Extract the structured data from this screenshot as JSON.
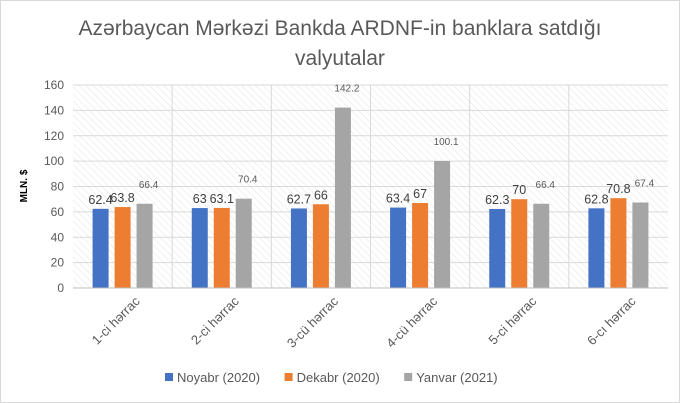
{
  "colors": {
    "series": [
      "#4472c4",
      "#ed7d31",
      "#a5a5a5"
    ],
    "grid": "#d9d9d9",
    "axis_text": "#595959"
  },
  "chart_data": {
    "type": "bar",
    "title": "Azərbaycan Mərkəzi Bankda ARDNF-in banklara satdığı valyutalar",
    "xlabel": "",
    "ylabel": "MLN. $",
    "ylim": [
      0,
      160
    ],
    "yticks": [
      0,
      20,
      40,
      60,
      80,
      100,
      120,
      140,
      160
    ],
    "categories": [
      "1-ci hərrac",
      "2-ci hərrac",
      "3-cü hərrac",
      "4-cü hərrac",
      "5-ci hərrac",
      "6-cı hərrac"
    ],
    "series": [
      {
        "name": "Noyabr (2020)",
        "values": [
          62.4,
          63,
          62.7,
          63.4,
          62.3,
          62.8
        ],
        "labels": [
          "62.4",
          "63",
          "62.7",
          "63.4",
          "62.3",
          "62.8"
        ]
      },
      {
        "name": "Dekabr (2020)",
        "values": [
          63.8,
          63.1,
          66,
          67,
          70,
          70.8
        ],
        "labels": [
          "63.8",
          "63.1",
          "66",
          "67",
          "70",
          "70.8"
        ]
      },
      {
        "name": "Yanvar (2021)",
        "values": [
          66.4,
          70.4,
          142.2,
          100.1,
          66.4,
          67.4
        ],
        "labels": [
          "66.4",
          "70.4",
          "142.2",
          "100.1",
          "66.4",
          "67.4"
        ]
      }
    ],
    "grid": true,
    "plot_background": "diagonal hatch",
    "legend_position": "bottom"
  }
}
